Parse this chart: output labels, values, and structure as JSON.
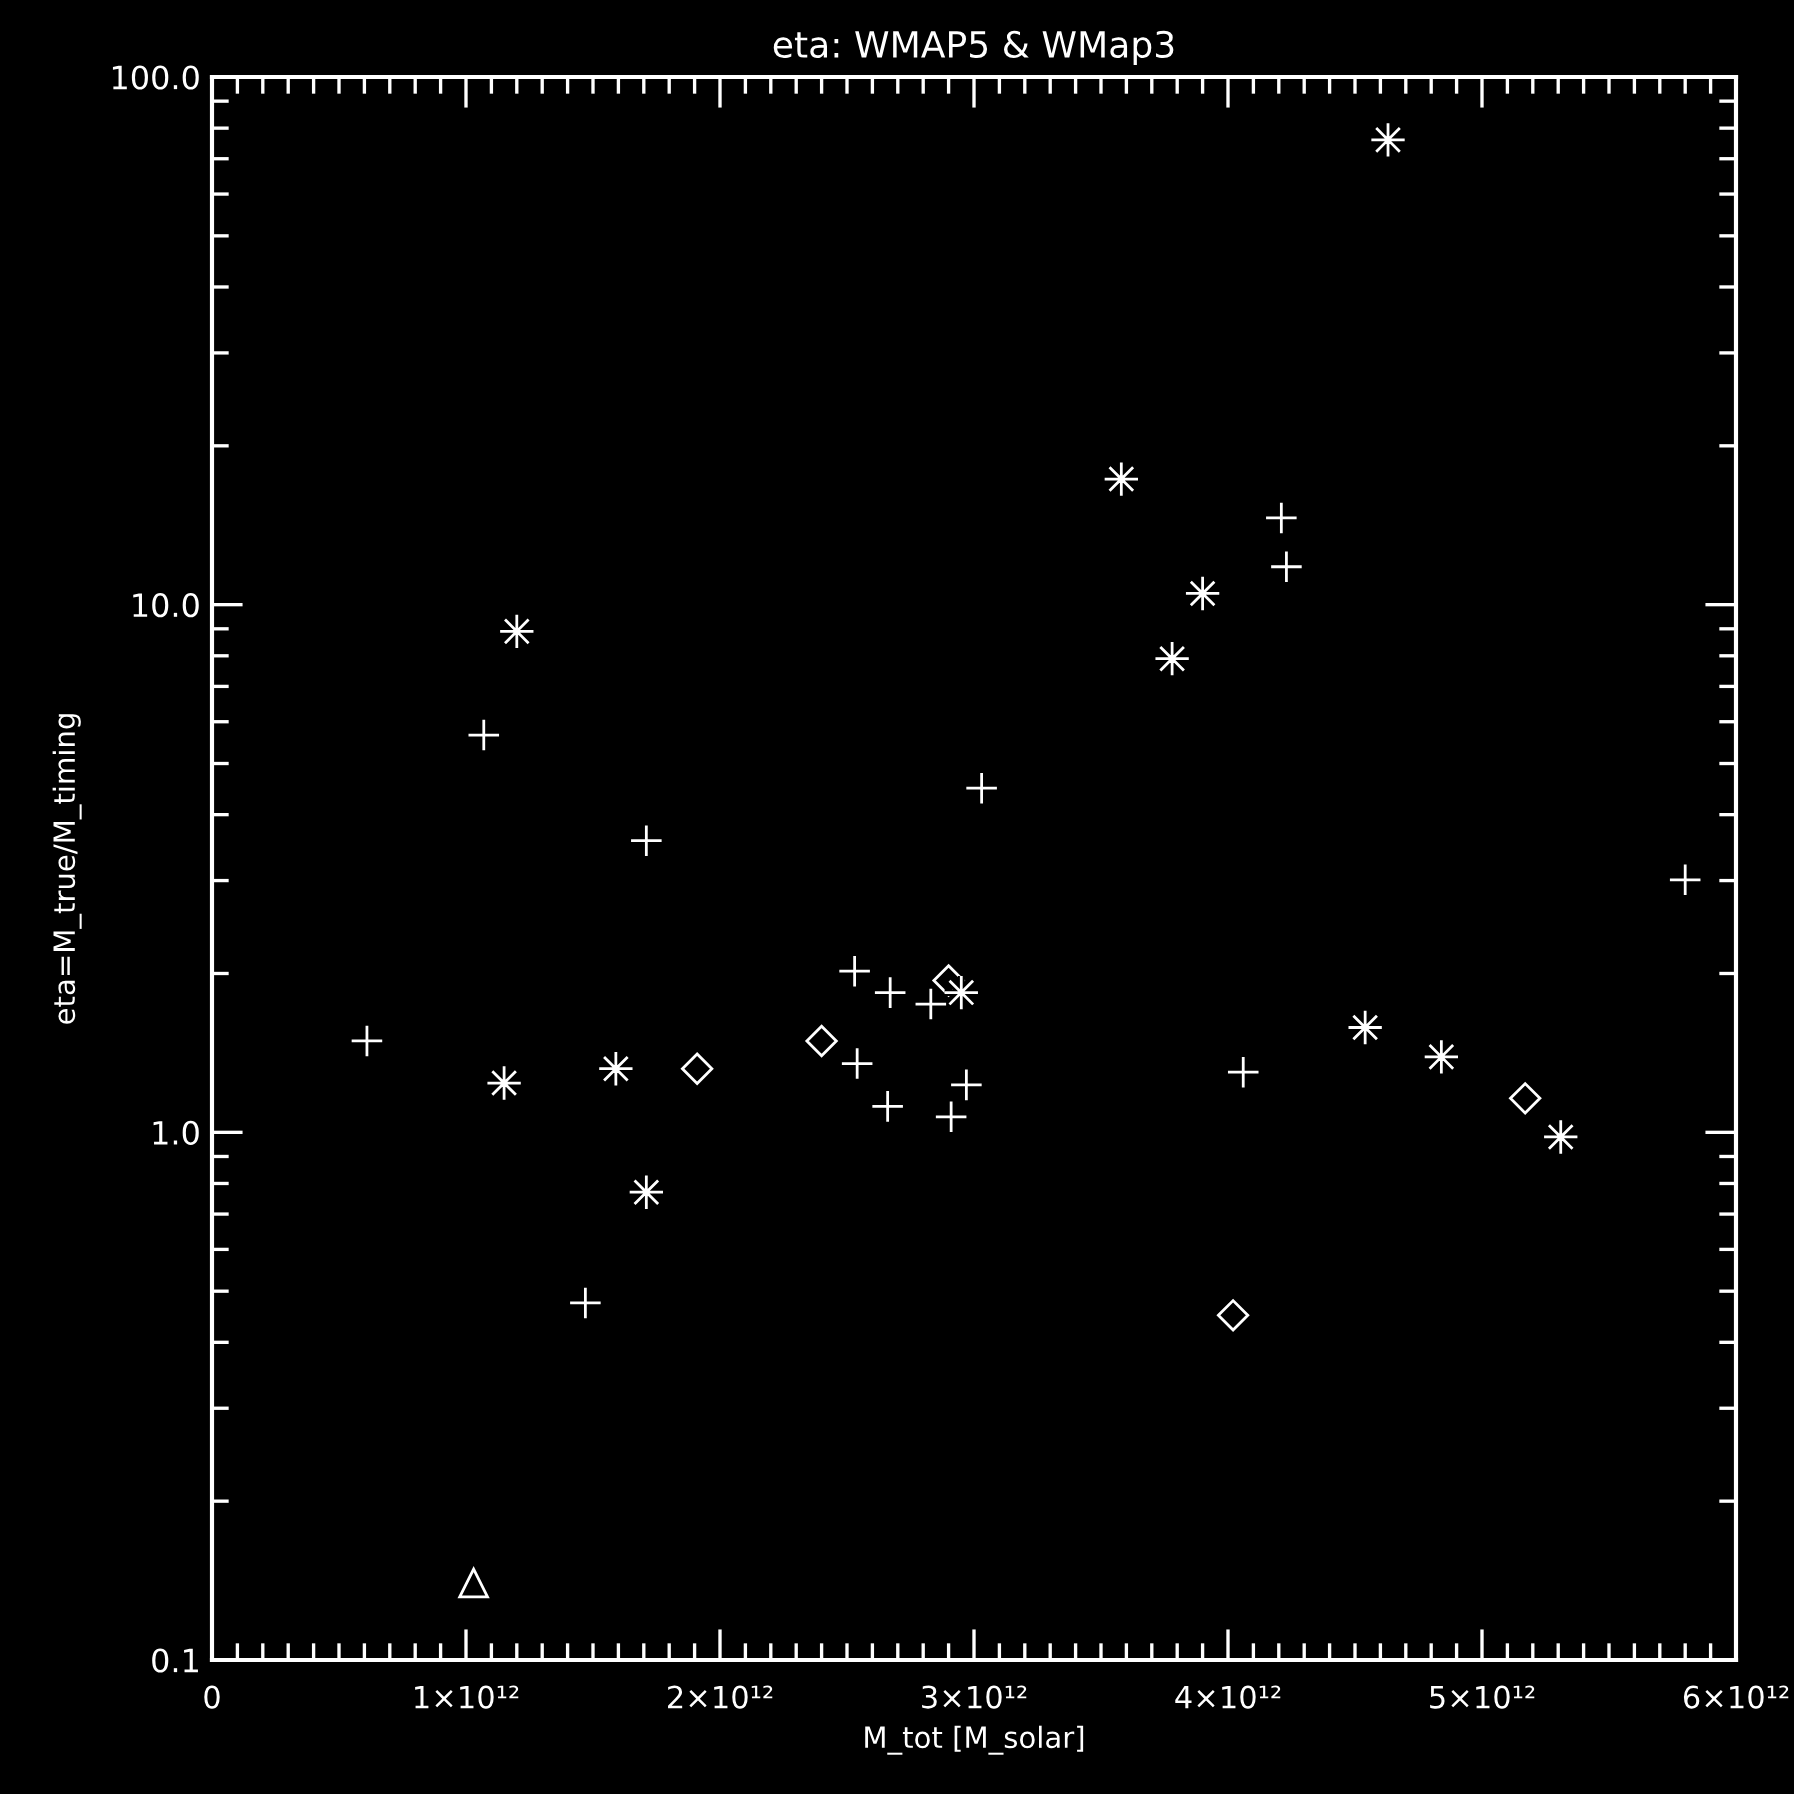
{
  "chart_data": {
    "type": "scatter",
    "title": "eta: WMAP5 & WMap3",
    "xlabel": "M_tot [M_solar]",
    "ylabel": "eta=M_true/M_timing",
    "log": "y",
    "xlim": [
      0,
      6000000000000.0
    ],
    "ylim": [
      0.1,
      100
    ],
    "xticks": [
      0,
      {
        "value": 1000000000000.0,
        "label": "1×10¹²"
      },
      {
        "value": 2000000000000.0,
        "label": "2×10¹²"
      },
      {
        "value": 3000000000000.0,
        "label": "3×10¹²"
      },
      {
        "value": 4000000000000.0,
        "label": "4×10¹²"
      },
      {
        "value": 5000000000000.0,
        "label": "5×10¹²"
      },
      {
        "value": 6000000000000.0,
        "label": "6×10¹²"
      },
      {
        "value": 100000000000.0,
        "label": null
      },
      {
        "value": 200000000000.0,
        "label": null
      },
      {
        "value": 300000000000.0,
        "label": null
      },
      {
        "value": 400000000000.0,
        "label": null
      },
      {
        "value": 500000000000.0,
        "label": null
      },
      {
        "value": 600000000000.0,
        "label": null
      },
      {
        "value": 700000000000.0,
        "label": null
      },
      {
        "value": 800000000000.0,
        "label": null
      },
      {
        "value": 900000000000.0,
        "label": null
      },
      {
        "value": 1100000000000.0,
        "label": null
      },
      {
        "value": 1200000000000.0,
        "label": null
      },
      {
        "value": 1300000000000.0,
        "label": null
      },
      {
        "value": 1400000000000.0,
        "label": null
      },
      {
        "value": 1500000000000.0,
        "label": null
      },
      {
        "value": 1600000000000.0,
        "label": null
      },
      {
        "value": 1700000000000.0,
        "label": null
      },
      {
        "value": 1800000000000.0,
        "label": null
      },
      {
        "value": 1900000000000.0,
        "label": null
      },
      {
        "value": 2100000000000.0,
        "label": null
      },
      {
        "value": 2200000000000.0,
        "label": null
      },
      {
        "value": 2300000000000.0,
        "label": null
      },
      {
        "value": 2400000000000.0,
        "label": null
      },
      {
        "value": 2500000000000.0,
        "label": null
      },
      {
        "value": 2600000000000.0,
        "label": null
      },
      {
        "value": 2700000000000.0,
        "label": null
      },
      {
        "value": 2800000000000.0,
        "label": null
      },
      {
        "value": 2900000000000.0,
        "label": null
      },
      {
        "value": 3100000000000.0,
        "label": null
      },
      {
        "value": 3200000000000.0,
        "label": null
      },
      {
        "value": 3300000000000.0,
        "label": null
      },
      {
        "value": 3400000000000.0,
        "label": null
      },
      {
        "value": 3500000000000.0,
        "label": null
      },
      {
        "value": 3600000000000.0,
        "label": null
      },
      {
        "value": 3700000000000.0,
        "label": null
      },
      {
        "value": 3800000000000.0,
        "label": null
      },
      {
        "value": 3900000000000.0,
        "label": null
      },
      {
        "value": 4100000000000.0,
        "label": null
      },
      {
        "value": 4200000000000.0,
        "label": null
      },
      {
        "value": 4300000000000.0,
        "label": null
      },
      {
        "value": 4400000000000.0,
        "label": null
      },
      {
        "value": 4500000000000.0,
        "label": null
      },
      {
        "value": 4600000000000.0,
        "label": null
      },
      {
        "value": 4700000000000.0,
        "label": null
      },
      {
        "value": 4800000000000.0,
        "label": null
      },
      {
        "value": 4900000000000.0,
        "label": null
      },
      {
        "value": 5100000000000.0,
        "label": null
      },
      {
        "value": 5200000000000.0,
        "label": null
      },
      {
        "value": 5300000000000.0,
        "label": null
      },
      {
        "value": 5400000000000.0,
        "label": null
      },
      {
        "value": 5500000000000.0,
        "label": null
      },
      {
        "value": 5600000000000.0,
        "label": null
      },
      {
        "value": 5700000000000.0,
        "label": null
      },
      {
        "value": 5800000000000.0,
        "label": null
      },
      {
        "value": 5900000000000.0,
        "label": null
      }
    ],
    "yticks": [
      0.1,
      {
        "value": 1,
        "label": "1.0"
      },
      {
        "value": 10,
        "label": "10.0"
      },
      {
        "value": 100,
        "label": "100.0"
      },
      {
        "value": 0.2,
        "label": null
      },
      {
        "value": 0.3,
        "label": null
      },
      {
        "value": 0.4,
        "label": null
      },
      {
        "value": 0.5,
        "label": null
      },
      {
        "value": 0.6,
        "label": null
      },
      {
        "value": 0.7,
        "label": null
      },
      {
        "value": 0.8,
        "label": null
      },
      {
        "value": 0.9,
        "label": null
      },
      {
        "value": 2,
        "label": null
      },
      {
        "value": 3,
        "label": null
      },
      {
        "value": 4,
        "label": null
      },
      {
        "value": 5,
        "label": null
      },
      {
        "value": 6,
        "label": null
      },
      {
        "value": 7,
        "label": null
      },
      {
        "value": 8,
        "label": null
      },
      {
        "value": 9,
        "label": null
      },
      {
        "value": 20,
        "label": null
      },
      {
        "value": 30,
        "label": null
      },
      {
        "value": 40,
        "label": null
      },
      {
        "value": 50,
        "label": null
      },
      {
        "value": 60,
        "label": null
      },
      {
        "value": 70,
        "label": null
      },
      {
        "value": 80,
        "label": null
      },
      {
        "value": 90,
        "label": null
      }
    ],
    "series": [
      {
        "color": "#ffffff",
        "marker": "cross",
        "x": [
          610000000000.0,
          1070000000000.0,
          1470000000000.0,
          1710000000000.0,
          2530000000000.0,
          2540000000000.0,
          2660000000000.0,
          2670000000000.0,
          2830000000000.0,
          2910000000000.0,
          2970000000000.0,
          3030000000000.0,
          4060000000000.0,
          4210000000000.0,
          4230000000000.0,
          5800000000000.0
        ],
        "values": [
          1.49,
          5.66,
          0.475,
          3.57,
          2.02,
          1.35,
          1.12,
          1.84,
          1.75,
          1.07,
          1.23,
          4.49,
          1.3,
          14.6,
          11.8,
          3.01
        ]
      },
      {
        "color": "#ffffff",
        "marker": "star",
        "x": [
          1150000000000.0,
          1200000000000.0,
          1590000000000.0,
          1710000000000.0,
          2950000000000.0,
          3580000000000.0,
          3780000000000.0,
          3900000000000.0,
          4540000000000.0,
          4630000000000.0,
          4840000000000.0,
          5310000000000.0
        ],
        "values": [
          1.24,
          8.9,
          1.32,
          0.77,
          1.84,
          17.3,
          7.9,
          10.5,
          1.58,
          76,
          1.39,
          0.98
        ]
      },
      {
        "color": "#ffffff",
        "marker": "diamond",
        "x": [
          1910000000000.0,
          2400000000000.0,
          2900000000000.0,
          4020000000000.0,
          5170000000000.0
        ],
        "values": [
          1.32,
          1.49,
          1.94,
          0.45,
          1.16
        ]
      },
      {
        "color": "#ffffff",
        "marker": "triangle",
        "x": [
          1030000000000.0
        ],
        "values": [
          0.14
        ]
      }
    ]
  }
}
